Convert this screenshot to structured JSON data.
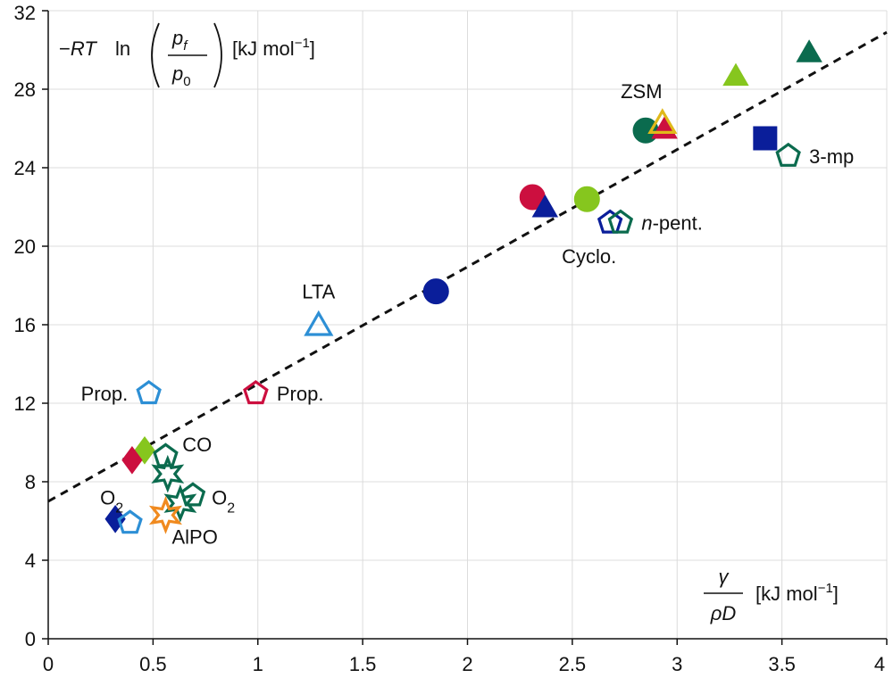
{
  "chart_data": {
    "type": "scatter",
    "xlim": [
      0,
      4
    ],
    "ylim": [
      0,
      32
    ],
    "x_ticks": [
      "0",
      "0.5",
      "1",
      "1.5",
      "2",
      "2.5",
      "3",
      "3.5",
      "4"
    ],
    "y_ticks": [
      "0",
      "4",
      "8",
      "12",
      "16",
      "20",
      "24",
      "28",
      "32"
    ],
    "grid": true,
    "ylabel": {
      "prefix": "−",
      "rt": "RT",
      "ln": "ln",
      "num_p": "p",
      "num_sub": "f",
      "den_p": "p",
      "den_sub": "0",
      "units": "[kJ mol",
      "units_exp": "−1",
      "units_close": "]"
    },
    "xlabel": {
      "num": "γ",
      "den_rho": "ρ",
      "den_d": "D",
      "units": "[kJ mol",
      "units_exp": "−1",
      "units_close": "]"
    },
    "fit_line": {
      "style": "dashed",
      "x": [
        0,
        4
      ],
      "y": [
        7.0,
        30.9
      ]
    },
    "colors": {
      "navy": "#0a1e9a",
      "crimson": "#cc0f3f",
      "green": "#0b6b4e",
      "lime": "#86c61e",
      "blue": "#2d8fd5",
      "gold": "#e0b91a",
      "orange": "#f08a1f"
    },
    "points": [
      {
        "x": 1.29,
        "y": 16.0,
        "shape": "triangle",
        "fill": "none",
        "color": "#2d8fd5"
      },
      {
        "x": 0.48,
        "y": 12.5,
        "shape": "pentagon",
        "fill": "none",
        "color": "#2d8fd5"
      },
      {
        "x": 0.99,
        "y": 12.5,
        "shape": "pentagon",
        "fill": "none",
        "color": "#cc0f3f"
      },
      {
        "x": 1.85,
        "y": 17.7,
        "shape": "circle",
        "fill": "solid",
        "color": "#0a1e9a"
      },
      {
        "x": 2.31,
        "y": 22.5,
        "shape": "circle",
        "fill": "solid",
        "color": "#cc0f3f"
      },
      {
        "x": 2.37,
        "y": 22.0,
        "shape": "triangle",
        "fill": "solid",
        "color": "#0a1e9a"
      },
      {
        "x": 2.57,
        "y": 22.4,
        "shape": "circle",
        "fill": "solid",
        "color": "#86c61e"
      },
      {
        "x": 2.68,
        "y": 21.2,
        "shape": "pentagon",
        "fill": "none",
        "color": "#0a1e9a"
      },
      {
        "x": 2.73,
        "y": 21.2,
        "shape": "pentagon",
        "fill": "none",
        "color": "#0b6b4e"
      },
      {
        "x": 2.85,
        "y": 25.9,
        "shape": "circle",
        "fill": "solid",
        "color": "#0b6b4e"
      },
      {
        "x": 2.94,
        "y": 26.0,
        "shape": "triangle",
        "fill": "solid",
        "color": "#cc0f3f"
      },
      {
        "x": 2.93,
        "y": 26.3,
        "shape": "triangle",
        "fill": "none",
        "color": "#e0b91a"
      },
      {
        "x": 3.28,
        "y": 28.7,
        "shape": "triangle",
        "fill": "solid",
        "color": "#86c61e"
      },
      {
        "x": 3.42,
        "y": 25.5,
        "shape": "square",
        "fill": "solid",
        "color": "#0a1e9a"
      },
      {
        "x": 3.53,
        "y": 24.6,
        "shape": "pentagon",
        "fill": "none",
        "color": "#0b6b4e"
      },
      {
        "x": 3.63,
        "y": 29.9,
        "shape": "triangle",
        "fill": "solid",
        "color": "#0b6b4e"
      },
      {
        "x": 0.46,
        "y": 9.6,
        "shape": "diamond",
        "fill": "solid",
        "color": "#86c61e"
      },
      {
        "x": 0.4,
        "y": 9.1,
        "shape": "diamond",
        "fill": "solid",
        "color": "#cc0f3f"
      },
      {
        "x": 0.56,
        "y": 9.3,
        "shape": "pentagon",
        "fill": "none",
        "color": "#0b6b4e"
      },
      {
        "x": 0.57,
        "y": 8.4,
        "shape": "star",
        "fill": "none",
        "color": "#0b6b4e"
      },
      {
        "x": 0.69,
        "y": 7.3,
        "shape": "pentagon",
        "fill": "none",
        "color": "#0b6b4e"
      },
      {
        "x": 0.63,
        "y": 6.9,
        "shape": "star",
        "fill": "none",
        "color": "#0b6b4e"
      },
      {
        "x": 0.32,
        "y": 6.1,
        "shape": "diamond",
        "fill": "solid",
        "color": "#0a1e9a"
      },
      {
        "x": 0.39,
        "y": 5.9,
        "shape": "pentagon",
        "fill": "none",
        "color": "#2d8fd5"
      },
      {
        "x": 0.56,
        "y": 6.3,
        "shape": "star",
        "fill": "none",
        "color": "#f08a1f"
      }
    ],
    "annotations": [
      {
        "id": "lta",
        "text": "LTA",
        "x": 1.29,
        "y": 17.7,
        "anchor": "middle",
        "color": "#2d8fd5"
      },
      {
        "id": "prop-left",
        "text": "Prop.",
        "x": 0.38,
        "y": 12.5,
        "anchor": "end",
        "color": "#111111"
      },
      {
        "id": "prop-right",
        "text": "Prop.",
        "x": 1.09,
        "y": 12.5,
        "anchor": "start",
        "color": "#111111"
      },
      {
        "id": "zsm",
        "text": "ZSM",
        "x": 2.83,
        "y": 27.9,
        "anchor": "middle",
        "color": "#e0b91a"
      },
      {
        "id": "3mp",
        "text": "3-mp",
        "x": 3.63,
        "y": 24.6,
        "anchor": "start",
        "color": "#111111"
      },
      {
        "id": "cyclo",
        "text": "Cyclo.",
        "x": 2.58,
        "y": 19.5,
        "anchor": "middle",
        "color": "#111111"
      },
      {
        "id": "co",
        "text": "CO",
        "x": 0.64,
        "y": 9.9,
        "anchor": "start",
        "color": "#111111"
      },
      {
        "id": "alpo",
        "text": "AlPO",
        "x": 0.59,
        "y": 5.2,
        "anchor": "start",
        "color": "#f08a1f"
      }
    ],
    "npent": {
      "italic": "n",
      "rest": "-pent.",
      "x": 2.83,
      "y": 21.2
    },
    "o2_left": {
      "base": "O",
      "sub": "2",
      "x": 0.35,
      "y": 7.2
    },
    "o2_right": {
      "base": "O",
      "sub": "2",
      "x": 0.78,
      "y": 7.2
    }
  }
}
